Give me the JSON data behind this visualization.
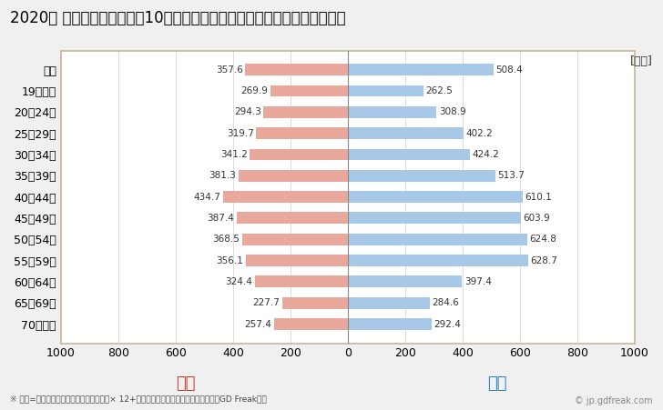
{
  "title": "2020年 民間企業（従業者数10人以上）フルタイム労働者の男女別平均年収",
  "unit_label": "[万円]",
  "footnote": "※ 年収=「きまって支給する現金給与額」× 12+「年間賞与その他特別給与額」としてGD Freak推計",
  "watermark": "© jp.gdfreak.com",
  "categories": [
    "全体",
    "19歳以下",
    "20～24歳",
    "25～29歳",
    "30～34歳",
    "35～39歳",
    "40～44歳",
    "45～49歳",
    "50～54歳",
    "55～59歳",
    "60～64歳",
    "65～69歳",
    "70歳以上"
  ],
  "female_values": [
    357.6,
    269.9,
    294.3,
    319.7,
    341.2,
    381.3,
    434.7,
    387.4,
    368.5,
    356.1,
    324.4,
    227.7,
    257.4
  ],
  "male_values": [
    508.4,
    262.5,
    308.9,
    402.2,
    424.2,
    513.7,
    610.1,
    603.9,
    624.8,
    628.7,
    397.4,
    284.6,
    292.4
  ],
  "female_color": "#E8A89C",
  "male_color": "#A8C8E8",
  "female_label": "女性",
  "male_label": "男性",
  "female_label_color": "#C0392B",
  "male_label_color": "#2980B9",
  "xlim": [
    -1000,
    1000
  ],
  "xticks": [
    -1000,
    -800,
    -600,
    -400,
    -200,
    0,
    200,
    400,
    600,
    800,
    1000
  ],
  "xtick_labels": [
    "1000",
    "800",
    "600",
    "400",
    "200",
    "0",
    "200",
    "400",
    "600",
    "800",
    "1000"
  ],
  "background_color": "#F0F0F0",
  "plot_bg_color": "#FFFFFF",
  "grid_color": "#CCCCCC",
  "border_color": "#C8B89A",
  "title_fontsize": 12,
  "tick_fontsize": 9,
  "value_fontsize": 7.5,
  "legend_fontsize": 13,
  "footnote_fontsize": 6.5,
  "bar_height": 0.55
}
